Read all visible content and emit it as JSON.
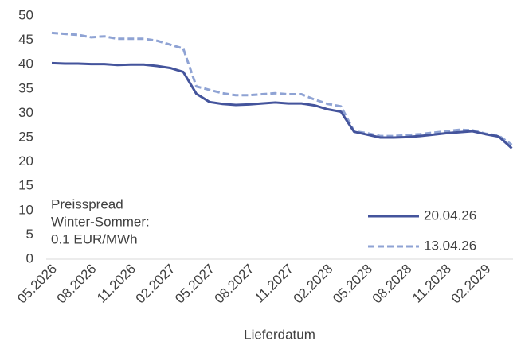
{
  "chart_data": {
    "type": "line",
    "x_label": "Lieferdatum",
    "categories": [
      "05.2026",
      null,
      null,
      "08.2026",
      null,
      null,
      "11.2026",
      null,
      null,
      "02.2027",
      null,
      null,
      "05.2027",
      null,
      null,
      "08.2027",
      null,
      null,
      "11.2027",
      null,
      null,
      "02.2028",
      null,
      null,
      "05.2028",
      null,
      null,
      "08.2028",
      null,
      null,
      "11.2028",
      null,
      null,
      "02.2029",
      null,
      null
    ],
    "series": [
      {
        "name": "20.04.26",
        "color": "#44549c",
        "dash": false,
        "values": [
          40.3,
          40.2,
          40.2,
          40.1,
          40.1,
          39.9,
          40.0,
          40.0,
          39.7,
          39.3,
          38.5,
          34.0,
          32.3,
          31.9,
          31.7,
          31.8,
          32.0,
          32.2,
          32.0,
          32.0,
          31.6,
          30.8,
          30.3,
          26.2,
          25.6,
          25.0,
          25.0,
          25.1,
          25.3,
          25.6,
          25.9,
          26.1,
          26.3,
          25.7,
          25.2,
          22.8
        ]
      },
      {
        "name": "13.04.26",
        "color": "#8fa3d4",
        "dash": true,
        "values": [
          46.5,
          46.3,
          46.1,
          45.6,
          45.8,
          45.3,
          45.3,
          45.3,
          44.9,
          44.1,
          43.3,
          35.5,
          34.8,
          34.1,
          33.7,
          33.7,
          33.9,
          34.1,
          33.9,
          33.9,
          32.8,
          31.9,
          31.4,
          26.3,
          25.9,
          25.3,
          25.3,
          25.5,
          25.7,
          26.0,
          26.3,
          26.6,
          26.5,
          25.8,
          25.4,
          23.5
        ]
      }
    ],
    "ylim": [
      0,
      50
    ],
    "yticks": [
      0,
      5,
      10,
      15,
      20,
      25,
      30,
      35,
      40,
      45,
      50
    ],
    "annotation": [
      "Preisspread",
      "Winter-Sommer:",
      "0.1 EUR/MWh"
    ],
    "legend": "lower right"
  }
}
